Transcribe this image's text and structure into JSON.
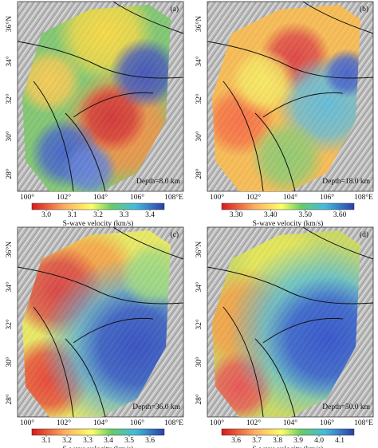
{
  "panels": [
    {
      "label": "(a)",
      "depth": "Depth=8.0 km",
      "lat_ticks": [
        "36°N",
        "34°",
        "32°",
        "30°",
        "28°"
      ],
      "lon_ticks": [
        "100°",
        "102°",
        "104°",
        "106°",
        "108°E"
      ],
      "colorbar_ticks": [
        "3.0",
        "3.1",
        "3.2",
        "3.3",
        "3.4"
      ],
      "colorbar_label": "S-wave velocity (km/s)"
    },
    {
      "label": "(b)",
      "depth": "Depth=18.0 km",
      "lat_ticks": [
        "36°N",
        "34°",
        "32°",
        "30°",
        "28°"
      ],
      "lon_ticks": [
        "100°",
        "102°",
        "104°",
        "106°",
        "108°E"
      ],
      "colorbar_ticks": [
        "3.30",
        "3.40",
        "3.50",
        "3.60"
      ],
      "colorbar_label": "S-wave velocity (km/s)"
    },
    {
      "label": "(c)",
      "depth": "Depth=36.0 km",
      "lat_ticks": [
        "36°N",
        "34°",
        "32°",
        "30°",
        "28°"
      ],
      "lon_ticks": [
        "100°",
        "102°",
        "104°",
        "106°",
        "108°E"
      ],
      "colorbar_ticks": [
        "3.1",
        "3.2",
        "3.3",
        "3.4",
        "3.5",
        "3.6"
      ],
      "colorbar_label": "S-wave velocity (km/s)"
    },
    {
      "label": "(d)",
      "depth": "Depth=50.0 km",
      "lat_ticks": [
        "36°N",
        "34°",
        "32°",
        "30°",
        "28°"
      ],
      "lon_ticks": [
        "100°",
        "102°",
        "104°",
        "106°",
        "108°E"
      ],
      "colorbar_ticks": [
        "3.6",
        "3.7",
        "3.8",
        "3.9",
        "4.0",
        "4.1"
      ],
      "colorbar_label": "S-wave velocity (km/s)"
    }
  ]
}
